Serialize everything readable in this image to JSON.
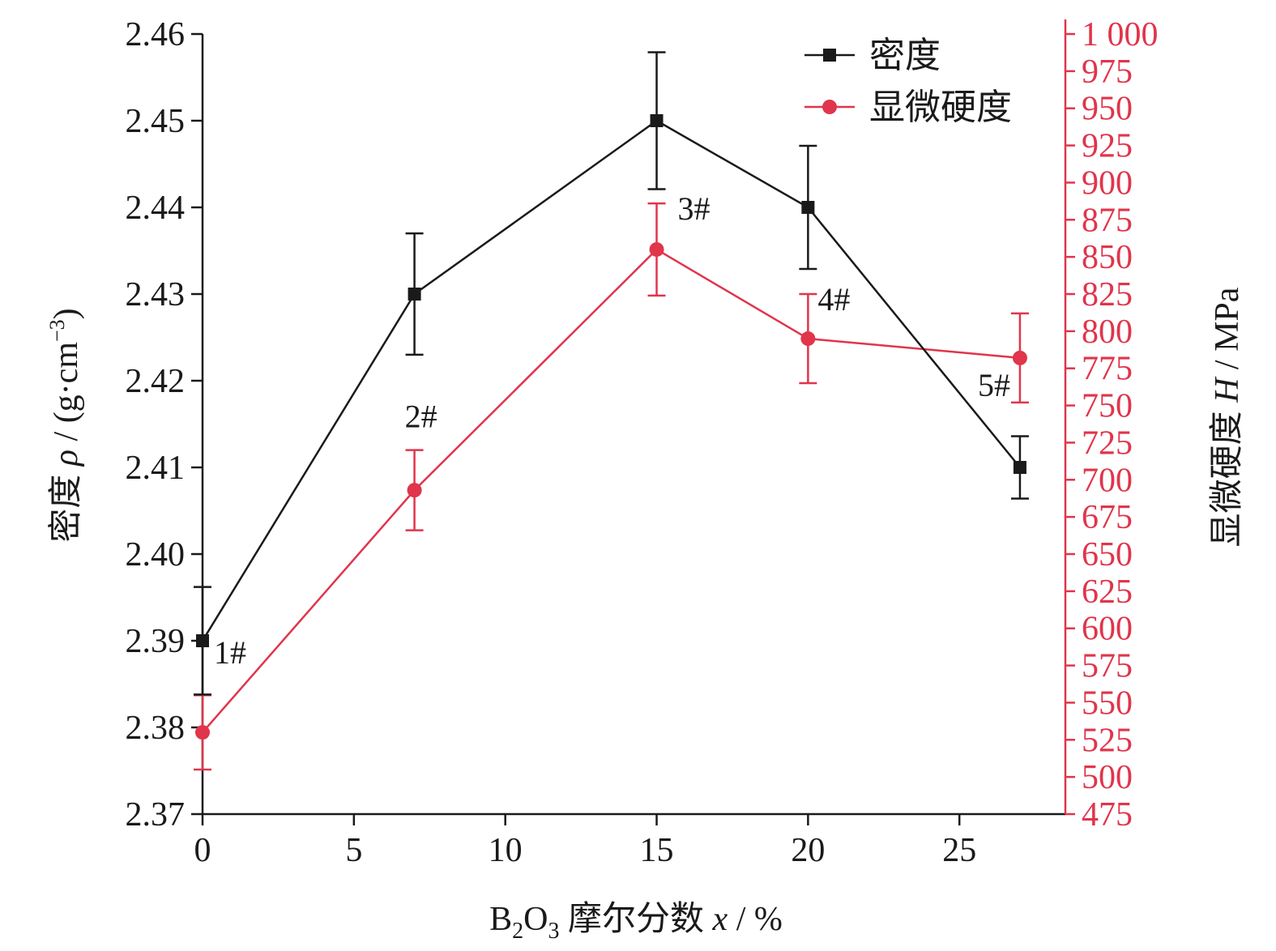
{
  "chart_data": {
    "type": "line",
    "x": [
      0,
      7,
      15,
      20,
      27
    ],
    "xlabel": {
      "pre": "B",
      "sub1": "2",
      "mid": "O",
      "sub2": "3",
      "text": " 摩尔分数 ",
      "var": "x",
      "unit": " / %"
    },
    "xlim": [
      0,
      28.5
    ],
    "xticks": [
      0,
      5,
      10,
      15,
      20,
      25
    ],
    "xtick_labels": [
      "0",
      "5",
      "10",
      "15",
      "20",
      "25"
    ],
    "ylabel_left": {
      "text": "密度 ",
      "var": "ρ",
      "unit_pre": " / (g·cm",
      "sup": "−3",
      "unit_post": ")"
    },
    "ylim_left": [
      2.37,
      2.46
    ],
    "yticks_left": [
      2.37,
      2.38,
      2.39,
      2.4,
      2.41,
      2.42,
      2.43,
      2.44,
      2.45,
      2.46
    ],
    "ytick_labels_left": [
      "2.37",
      "2.38",
      "2.39",
      "2.40",
      "2.41",
      "2.42",
      "2.43",
      "2.44",
      "2.45",
      "2.46"
    ],
    "ylabel_right": {
      "text": "显微硬度 ",
      "var": "H",
      "unit": " / MPa"
    },
    "ylim_right": [
      475,
      1000
    ],
    "yticks_right": [
      475,
      500,
      525,
      550,
      575,
      600,
      625,
      650,
      675,
      700,
      725,
      750,
      775,
      800,
      825,
      850,
      875,
      900,
      925,
      950,
      975,
      1000
    ],
    "ytick_labels_right": [
      "475",
      "500",
      "525",
      "550",
      "575",
      "600",
      "625",
      "650",
      "675",
      "700",
      "725",
      "750",
      "775",
      "800",
      "825",
      "850",
      "875",
      "900",
      "925",
      "950",
      "975",
      "1 000"
    ],
    "series": [
      {
        "name": "密度",
        "axis": "left",
        "marker": "square",
        "color": "#1a1a1a",
        "values": [
          2.39,
          2.43,
          2.45,
          2.44,
          2.41
        ],
        "errors": [
          0.0062,
          0.007,
          0.0079,
          0.0071,
          0.0036
        ]
      },
      {
        "name": "显微硬度",
        "axis": "right",
        "marker": "circle",
        "color": "#e0354b",
        "values": [
          530,
          693,
          855,
          795,
          782
        ],
        "errors": [
          25,
          27,
          31,
          30,
          30
        ]
      }
    ],
    "point_labels": [
      "1#",
      "2#",
      "3#",
      "4#",
      "5#"
    ],
    "legend_position": "top-right",
    "grid": false,
    "colors": {
      "left_axis": "#1a1a1a",
      "right_axis": "#e0354b"
    }
  }
}
